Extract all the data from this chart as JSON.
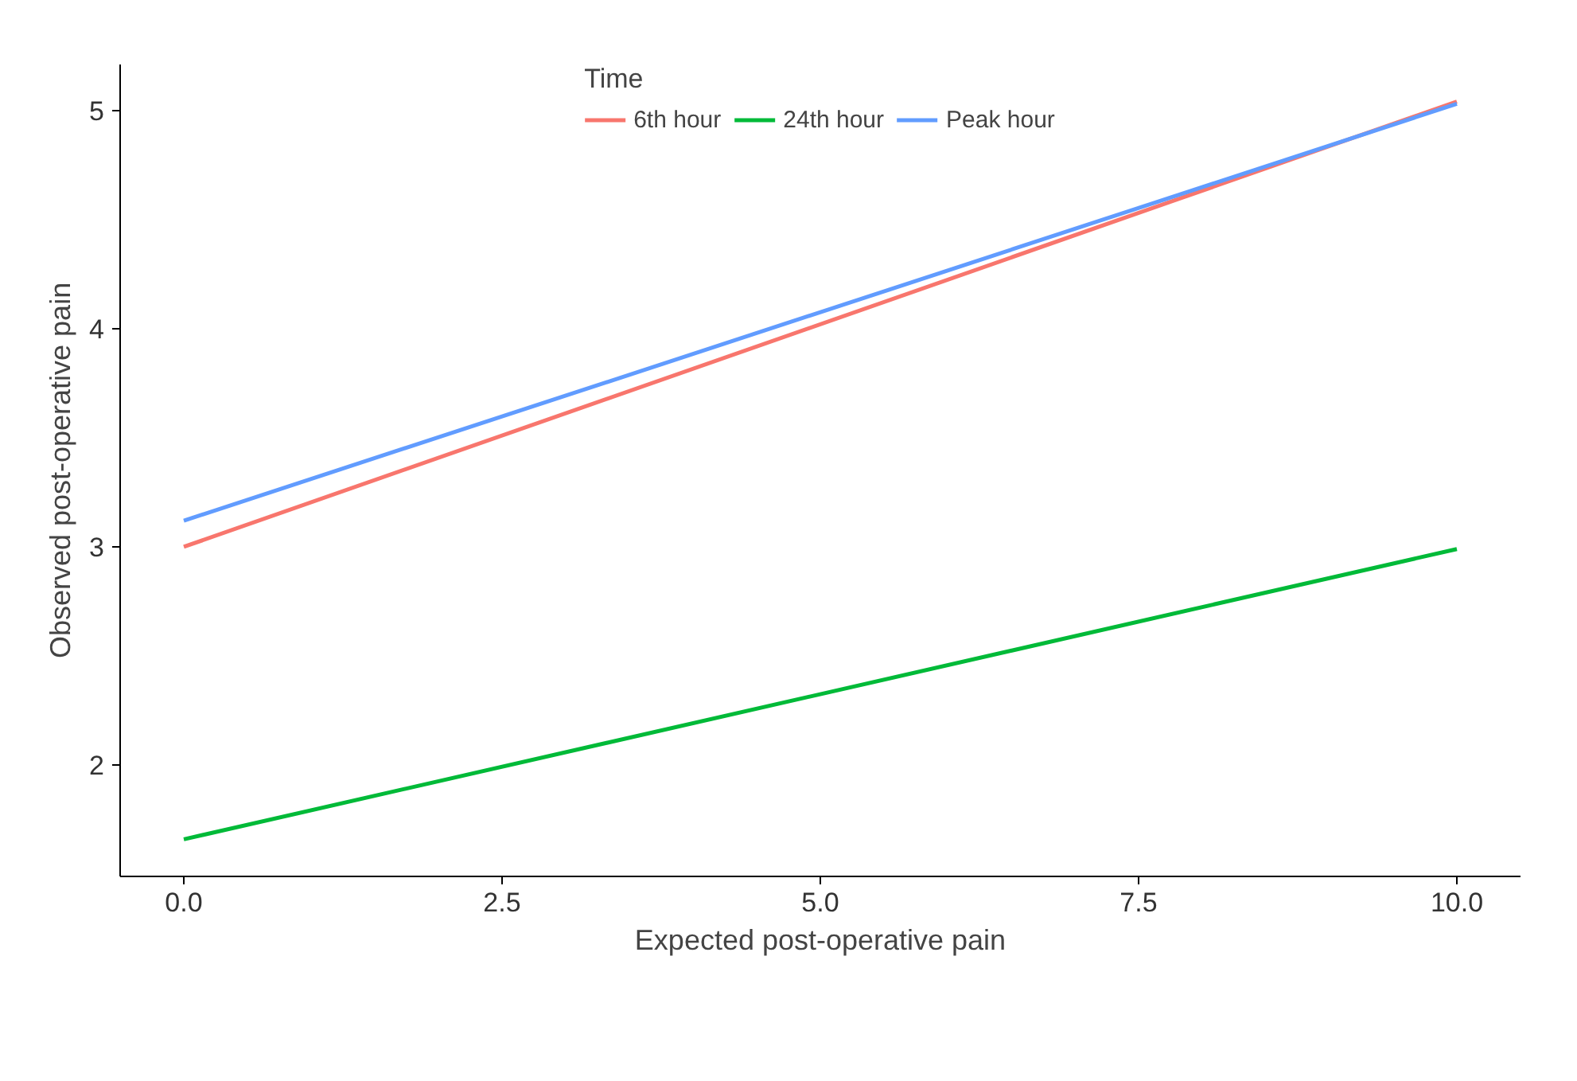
{
  "chart_data": {
    "type": "line",
    "xlabel": "Expected post-operative pain",
    "ylabel": "Observed post-operative pain",
    "legend_title": "Time",
    "legend": "top",
    "x": [
      0,
      10
    ],
    "series": [
      {
        "name": "6th hour",
        "color": "#f8766d",
        "values": [
          3.0,
          5.04
        ]
      },
      {
        "name": "24th hour",
        "color": "#00ba38",
        "values": [
          1.66,
          2.99
        ]
      },
      {
        "name": "Peak hour",
        "color": "#619cff",
        "values": [
          3.12,
          5.03
        ]
      }
    ],
    "xlim": [
      -0.5,
      10.5
    ],
    "ylim": [
      1.49,
      5.21
    ],
    "xticks": [
      {
        "value": 0,
        "label": "0.0"
      },
      {
        "value": 2.5,
        "label": "2.5"
      },
      {
        "value": 5,
        "label": "5.0"
      },
      {
        "value": 7.5,
        "label": "7.5"
      },
      {
        "value": 10,
        "label": "10.0"
      }
    ],
    "yticks": [
      2,
      3,
      4,
      5
    ],
    "grid": false
  }
}
